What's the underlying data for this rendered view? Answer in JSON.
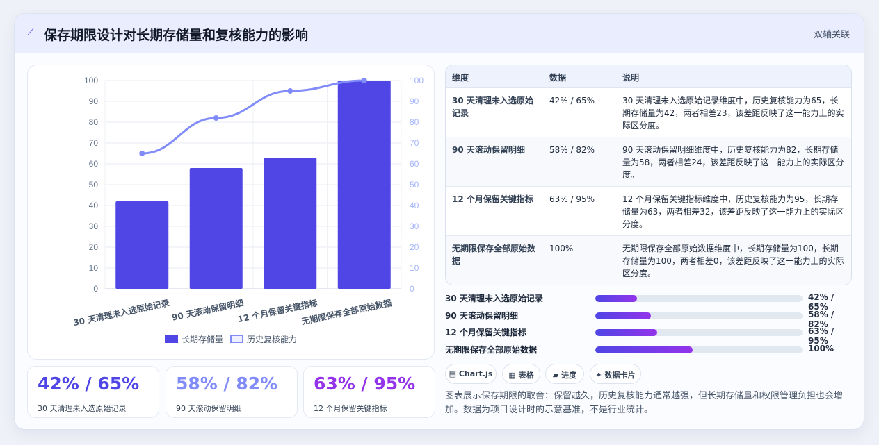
{
  "header": {
    "title": "保存期限设计对长期存储量和复核能力的影响",
    "tag": "双轴关联"
  },
  "chart_data": {
    "type": "bar",
    "categories": [
      "30 天清理未入选原始记录",
      "90 天滚动保留明细",
      "12 个月保留关键指标",
      "无期限保存全部原始数据"
    ],
    "series": [
      {
        "name": "长期存储量",
        "type": "bar",
        "axis": "left",
        "values": [
          42,
          58,
          63,
          100
        ],
        "color": "#4f46e5"
      },
      {
        "name": "历史复核能力",
        "type": "line",
        "axis": "right",
        "values": [
          65,
          82,
          95,
          100
        ],
        "color": "#818cf8"
      }
    ],
    "ylim": [
      0,
      100
    ],
    "y2lim": [
      0,
      100
    ],
    "yticks": [
      0,
      10,
      20,
      30,
      40,
      50,
      60,
      70,
      80,
      90,
      100
    ],
    "grid": true,
    "legend": "bottom"
  },
  "kpis": [
    {
      "value": "42% / 65%",
      "label": "30 天清理未入选原始记录",
      "color": "#4f46e5"
    },
    {
      "value": "58% / 82%",
      "label": "90 天滚动保留明细",
      "color": "#818cf8"
    },
    {
      "value": "63% / 95%",
      "label": "12 个月保留关键指标",
      "color": "#9333ea"
    }
  ],
  "table": {
    "headers": [
      "维度",
      "数据",
      "说明"
    ],
    "rows": [
      {
        "dim": "30 天清理未入选原始记录",
        "data": "42% / 65%",
        "desc": "30 天清理未入选原始记录维度中，历史复核能力为65，长期存储量为42，两者相差23，该差距反映了这一能力上的实际区分度。"
      },
      {
        "dim": "90 天滚动保留明细",
        "data": "58% / 82%",
        "desc": "90 天滚动保留明细维度中，历史复核能力为82，长期存储量为58，两者相差24，该差距反映了这一能力上的实际区分度。"
      },
      {
        "dim": "12 个月保留关键指标",
        "data": "63% / 95%",
        "desc": "12 个月保留关键指标维度中，历史复核能力为95，长期存储量为63，两者相差32，该差距反映了这一能力上的实际区分度。"
      },
      {
        "dim": "无期限保存全部原始数据",
        "data": "100%",
        "desc": "无期限保存全部原始数据维度中，长期存储量为100，长期存储量为100，两者相差0，该差距反映了这一能力上的实际区分度。"
      }
    ]
  },
  "progress": [
    {
      "label": "30 天清理未入选原始记录",
      "value": "42% / 65%",
      "fill": 0.2
    },
    {
      "label": "90 天滚动保留明细",
      "value": "58% / 82%",
      "fill": 0.27
    },
    {
      "label": "12 个月保留关键指标",
      "value": "63% / 95%",
      "fill": 0.3
    },
    {
      "label": "无期限保存全部原始数据",
      "value": "100%",
      "fill": 0.47
    }
  ],
  "chips": [
    {
      "icon": "chart-icon",
      "glyph": "▤",
      "label": "Chart.js"
    },
    {
      "icon": "table-icon",
      "glyph": "▦",
      "label": "表格"
    },
    {
      "icon": "progress-icon",
      "glyph": "▰",
      "label": "进度"
    },
    {
      "icon": "card-icon",
      "glyph": "✦",
      "label": "数据卡片"
    }
  ],
  "note": "图表展示保存期限的取舍：保留越久，历史复核能力通常越强，但长期存储量和权限管理负担也会增加。数据为项目设计时的示意基准，不是行业统计。"
}
